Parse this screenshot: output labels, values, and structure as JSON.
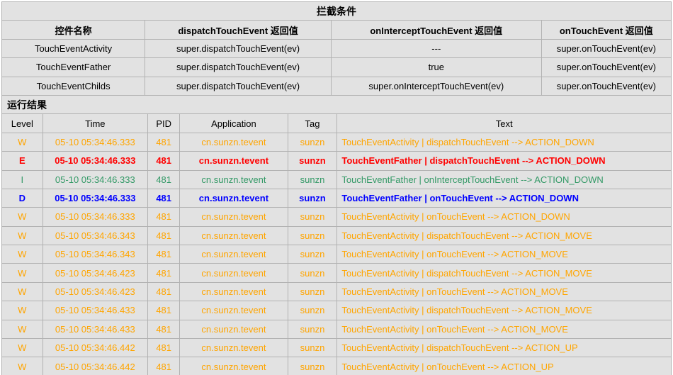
{
  "colors": {
    "warn": "#FFA500",
    "error": "#FF0000",
    "info": "#339966",
    "debug": "#0000FF",
    "cell_bg": "#E2E2E2",
    "border": "#B2B2B2",
    "heading_text": "#000000"
  },
  "intercept": {
    "title": "拦截条件",
    "headers": [
      "控件名称",
      "dispatchTouchEvent 返回值",
      "onInterceptTouchEvent 返回值",
      "onTouchEvent 返回值"
    ],
    "rows": [
      [
        "TouchEventActivity",
        "super.dispatchTouchEvent(ev)",
        "---",
        "super.onTouchEvent(ev)"
      ],
      [
        "TouchEventFather",
        "super.dispatchTouchEvent(ev)",
        "true",
        "super.onTouchEvent(ev)"
      ],
      [
        "TouchEventChilds",
        "super.dispatchTouchEvent(ev)",
        "super.onInterceptTouchEvent(ev)",
        "super.onTouchEvent(ev)"
      ]
    ]
  },
  "log": {
    "title": "运行结果",
    "headers": [
      "Level",
      "Time",
      "PID",
      "Application",
      "Tag",
      "Text"
    ],
    "rows": [
      {
        "level": "W",
        "time": "05-10 05:34:46.333",
        "pid": "481",
        "app": "cn.sunzn.tevent",
        "tag": "sunzn",
        "text": "TouchEventActivity | dispatchTouchEvent --> ACTION_DOWN",
        "color": "warn",
        "bold": false
      },
      {
        "level": "E",
        "time": "05-10 05:34:46.333",
        "pid": "481",
        "app": "cn.sunzn.tevent",
        "tag": "sunzn",
        "text": "TouchEventFather | dispatchTouchEvent --> ACTION_DOWN",
        "color": "error",
        "bold": true
      },
      {
        "level": "I",
        "time": "05-10 05:34:46.333",
        "pid": "481",
        "app": "cn.sunzn.tevent",
        "tag": "sunzn",
        "text": "TouchEventFather | onInterceptTouchEvent --> ACTION_DOWN",
        "color": "info",
        "bold": false
      },
      {
        "level": "D",
        "time": "05-10 05:34:46.333",
        "pid": "481",
        "app": "cn.sunzn.tevent",
        "tag": "sunzn",
        "text": "TouchEventFather | onTouchEvent --> ACTION_DOWN",
        "color": "debug",
        "bold": true
      },
      {
        "level": "W",
        "time": "05-10 05:34:46.333",
        "pid": "481",
        "app": "cn.sunzn.tevent",
        "tag": "sunzn",
        "text": "TouchEventActivity | onTouchEvent --> ACTION_DOWN",
        "color": "warn",
        "bold": false
      },
      {
        "level": "W",
        "time": "05-10 05:34:46.343",
        "pid": "481",
        "app": "cn.sunzn.tevent",
        "tag": "sunzn",
        "text": "TouchEventActivity | dispatchTouchEvent --> ACTION_MOVE",
        "color": "warn",
        "bold": false
      },
      {
        "level": "W",
        "time": "05-10 05:34:46.343",
        "pid": "481",
        "app": "cn.sunzn.tevent",
        "tag": "sunzn",
        "text": "TouchEventActivity | onTouchEvent --> ACTION_MOVE",
        "color": "warn",
        "bold": false
      },
      {
        "level": "W",
        "time": "05-10 05:34:46.423",
        "pid": "481",
        "app": "cn.sunzn.tevent",
        "tag": "sunzn",
        "text": "TouchEventActivity | dispatchTouchEvent --> ACTION_MOVE",
        "color": "warn",
        "bold": false
      },
      {
        "level": "W",
        "time": "05-10 05:34:46.423",
        "pid": "481",
        "app": "cn.sunzn.tevent",
        "tag": "sunzn",
        "text": "TouchEventActivity | onTouchEvent --> ACTION_MOVE",
        "color": "warn",
        "bold": false
      },
      {
        "level": "W",
        "time": "05-10 05:34:46.433",
        "pid": "481",
        "app": "cn.sunzn.tevent",
        "tag": "sunzn",
        "text": "TouchEventActivity | dispatchTouchEvent --> ACTION_MOVE",
        "color": "warn",
        "bold": false
      },
      {
        "level": "W",
        "time": "05-10 05:34:46.433",
        "pid": "481",
        "app": "cn.sunzn.tevent",
        "tag": "sunzn",
        "text": "TouchEventActivity | onTouchEvent --> ACTION_MOVE",
        "color": "warn",
        "bold": false
      },
      {
        "level": "W",
        "time": "05-10 05:34:46.442",
        "pid": "481",
        "app": "cn.sunzn.tevent",
        "tag": "sunzn",
        "text": "TouchEventActivity | dispatchTouchEvent --> ACTION_UP",
        "color": "warn",
        "bold": false
      },
      {
        "level": "W",
        "time": "05-10 05:34:46.442",
        "pid": "481",
        "app": "cn.sunzn.tevent",
        "tag": "sunzn",
        "text": "TouchEventActivity | onTouchEvent --> ACTION_UP",
        "color": "warn",
        "bold": false
      }
    ]
  }
}
